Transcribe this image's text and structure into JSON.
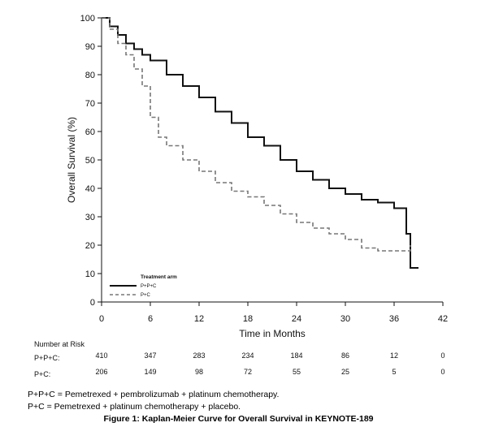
{
  "chart_data": {
    "type": "line",
    "xlabel": "Time in Months",
    "ylabel": "Overall Survival (%)",
    "xlim": [
      0,
      42
    ],
    "ylim": [
      0,
      100
    ],
    "xticks": [
      0,
      6,
      12,
      18,
      24,
      30,
      36,
      42
    ],
    "yticks": [
      0,
      10,
      20,
      30,
      40,
      50,
      60,
      70,
      80,
      90,
      100
    ],
    "grid": false,
    "legend": {
      "title": "Treatment arm",
      "position": "bottom-left",
      "entries": [
        "P+P+C",
        "P+C"
      ]
    },
    "series": [
      {
        "name": "P+P+C",
        "style": "solid",
        "color": "#111111",
        "x": [
          0,
          1,
          2,
          3,
          4,
          5,
          6,
          8,
          10,
          12,
          14,
          16,
          18,
          20,
          22,
          24,
          26,
          28,
          30,
          32,
          34,
          36,
          37.5,
          37.5,
          38,
          38,
          39
        ],
        "y": [
          100,
          97,
          94,
          91,
          89,
          87,
          85,
          80,
          76,
          72,
          67,
          63,
          58,
          55,
          50,
          46,
          43,
          40,
          38,
          36,
          35,
          33,
          32,
          24,
          19,
          12,
          12
        ]
      },
      {
        "name": "P+C",
        "style": "dashed",
        "color": "#777777",
        "x": [
          0,
          1,
          2,
          3,
          4,
          5,
          6,
          7,
          8,
          10,
          12,
          14,
          16,
          18,
          20,
          22,
          24,
          26,
          28,
          30,
          32,
          34,
          36,
          37,
          38,
          38
        ],
        "y": [
          100,
          96,
          91,
          87,
          82,
          76,
          65,
          58,
          55,
          50,
          46,
          42,
          39,
          37,
          34,
          31,
          28,
          26,
          24,
          22,
          19,
          18,
          18,
          18,
          18,
          20
        ]
      }
    ],
    "risk_table": {
      "title": "Number at Risk",
      "times": [
        0,
        6,
        12,
        18,
        24,
        30,
        36,
        42
      ],
      "rows": [
        {
          "label": "P+P+C:",
          "values": [
            "410",
            "347",
            "283",
            "234",
            "184",
            "86",
            "12",
            "0"
          ]
        },
        {
          "label": "P+C:",
          "values": [
            "206",
            "149",
            "98",
            "72",
            "55",
            "25",
            "5",
            "0"
          ]
        }
      ]
    }
  },
  "footnotes": [
    "P+P+C = Pemetrexed + pembrolizumab + platinum chemotherapy.",
    "P+C = Pemetrexed + platinum chemotherapy + placebo."
  ],
  "caption": "Figure 1: Kaplan-Meier Curve for Overall Survival in KEYNOTE-189"
}
